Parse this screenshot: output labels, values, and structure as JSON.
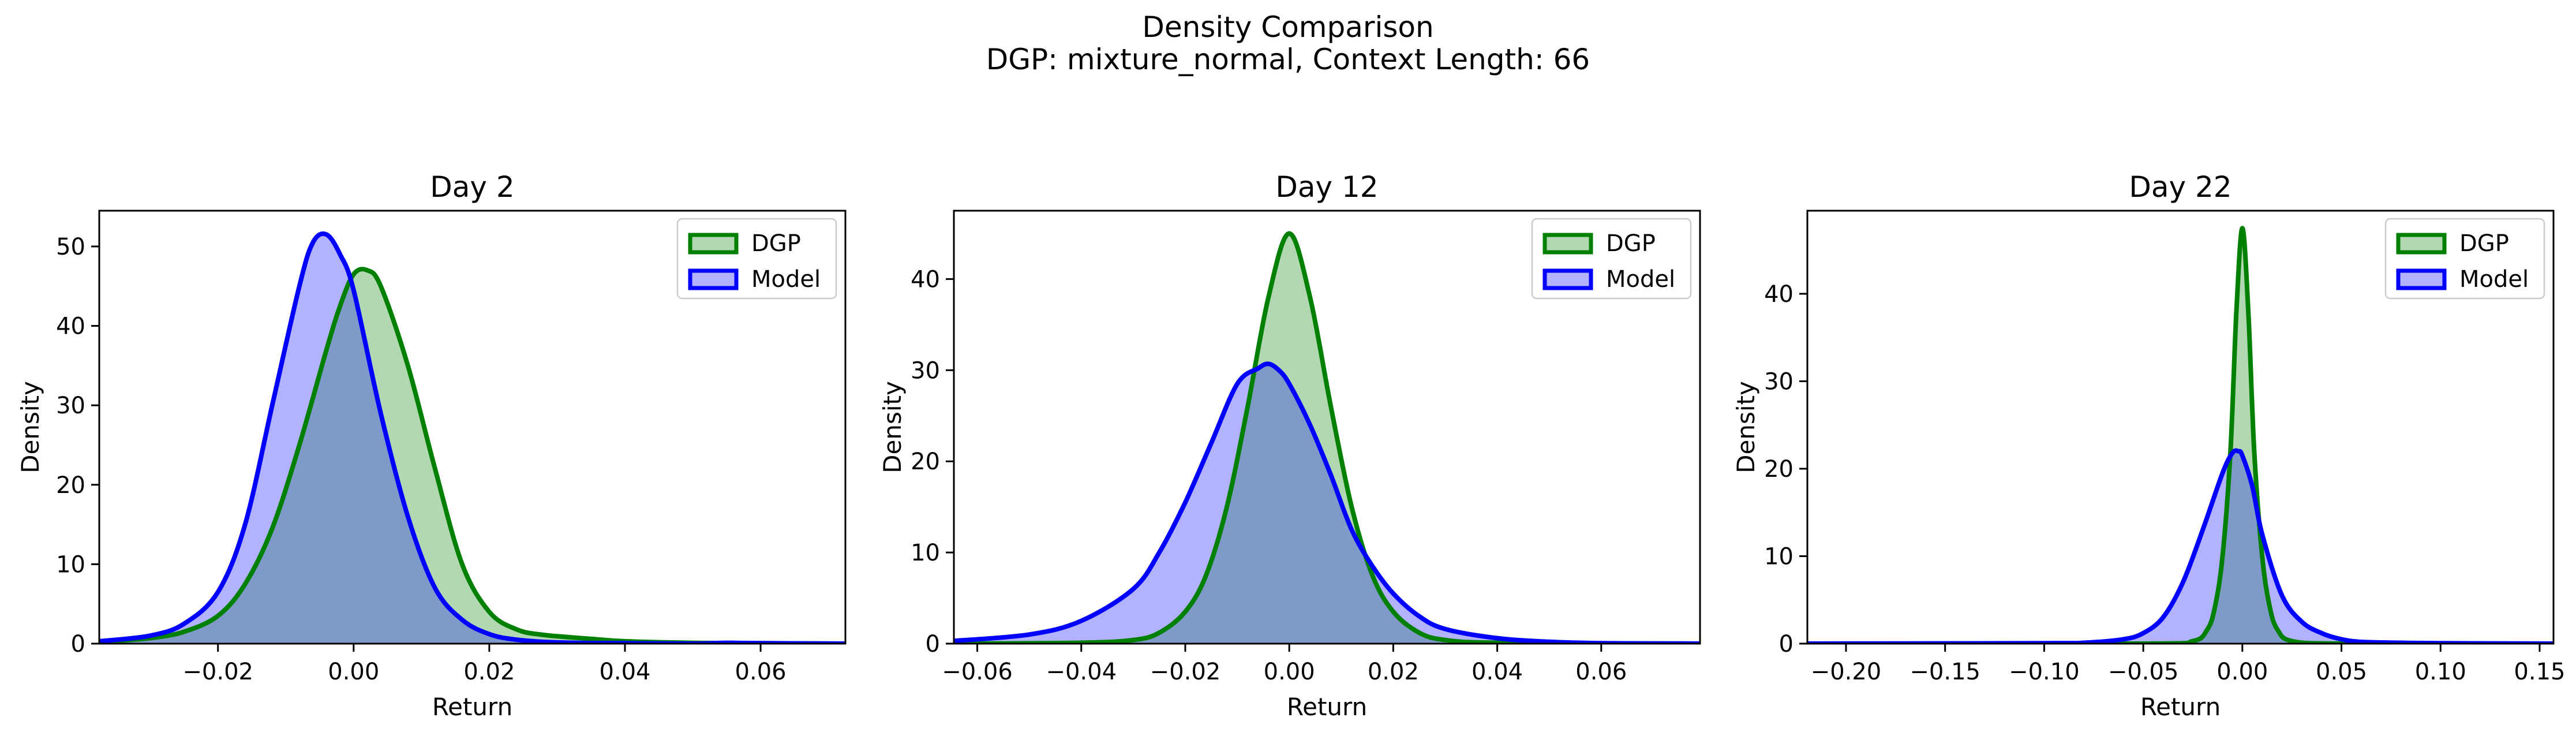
{
  "figure": {
    "title_line1": "Density Comparison",
    "title_line2": "DGP: mixture_normal, Context Length: 66"
  },
  "colors": {
    "dgp_line": "#008000",
    "dgp_fill": "#b2d8b2",
    "model_line": "#0000ff",
    "model_fill": "#b2b2ff",
    "overlap_fill": "#7f9ac8",
    "overlap_line": "#004c4c"
  },
  "chart_data": [
    {
      "type": "area",
      "title": "Day 2",
      "xlabel": "Return",
      "ylabel": "Density",
      "xlim": [
        -0.0375,
        0.0725
      ],
      "ylim": [
        0,
        54.5
      ],
      "xticks": [
        -0.02,
        0.0,
        0.02,
        0.04,
        0.06
      ],
      "xtick_labels": [
        "−0.02",
        "0.00",
        "0.02",
        "0.04",
        "0.06"
      ],
      "yticks": [
        0,
        10,
        20,
        30,
        40,
        50
      ],
      "ytick_labels": [
        "0",
        "10",
        "20",
        "30",
        "40",
        "50"
      ],
      "legend": "top-right",
      "series": [
        {
          "name": "DGP",
          "x": [
            -0.0375,
            -0.03,
            -0.025,
            -0.02,
            -0.016,
            -0.012,
            -0.008,
            -0.004,
            -0.002,
            0.0,
            0.002,
            0.004,
            0.008,
            0.012,
            0.016,
            0.02,
            0.024,
            0.028,
            0.035,
            0.04,
            0.05,
            0.06,
            0.0725
          ],
          "y": [
            0.2,
            0.7,
            1.5,
            3.5,
            7.5,
            14.5,
            25,
            37,
            42.5,
            46.5,
            47,
            45,
            35,
            22,
            10,
            4,
            1.8,
            1.1,
            0.6,
            0.3,
            0.1,
            0.05,
            0.0
          ]
        },
        {
          "name": "Model",
          "x": [
            -0.0375,
            -0.03,
            -0.025,
            -0.02,
            -0.016,
            -0.012,
            -0.008,
            -0.006,
            -0.004,
            -0.002,
            0.0,
            0.004,
            0.008,
            0.012,
            0.016,
            0.02,
            0.024,
            0.03,
            0.04,
            0.05,
            0.055,
            0.06,
            0.0725
          ],
          "y": [
            0.3,
            1.0,
            2.5,
            6.5,
            15,
            30,
            45,
            50.5,
            51.5,
            49,
            44.5,
            29,
            16,
            7,
            3,
            1.2,
            0.5,
            0.15,
            0.05,
            0.0,
            0.1,
            0.05,
            0.0
          ]
        }
      ]
    },
    {
      "type": "area",
      "title": "Day 12",
      "xlabel": "Return",
      "ylabel": "Density",
      "xlim": [
        -0.0645,
        0.079
      ],
      "ylim": [
        0,
        47.5
      ],
      "xticks": [
        -0.06,
        -0.04,
        -0.02,
        0.0,
        0.02,
        0.04,
        0.06
      ],
      "xtick_labels": [
        "−0.06",
        "−0.04",
        "−0.02",
        "0.00",
        "0.02",
        "0.04",
        "0.06"
      ],
      "yticks": [
        0,
        10,
        20,
        30,
        40
      ],
      "ytick_labels": [
        "0",
        "10",
        "20",
        "30",
        "40"
      ],
      "legend": "top-right",
      "series": [
        {
          "name": "DGP",
          "x": [
            -0.0645,
            -0.04,
            -0.03,
            -0.025,
            -0.02,
            -0.016,
            -0.012,
            -0.008,
            -0.004,
            0.0,
            0.004,
            0.008,
            0.012,
            0.016,
            0.02,
            0.025,
            0.03,
            0.04,
            0.079
          ],
          "y": [
            0.0,
            0.1,
            0.4,
            1.2,
            3.5,
            7.5,
            15,
            26,
            38,
            45,
            38,
            26,
            15,
            7.5,
            3.5,
            1.2,
            0.4,
            0.1,
            0.0
          ]
        },
        {
          "name": "Model",
          "x": [
            -0.0645,
            -0.05,
            -0.04,
            -0.03,
            -0.025,
            -0.02,
            -0.015,
            -0.01,
            -0.006,
            -0.004,
            -0.002,
            0.0,
            0.004,
            0.008,
            0.012,
            0.016,
            0.02,
            0.025,
            0.03,
            0.04,
            0.05,
            0.06,
            0.079
          ],
          "y": [
            0.3,
            1,
            2.5,
            6,
            10,
            15.5,
            22,
            28.5,
            30.2,
            30.7,
            30,
            28.5,
            24,
            18.5,
            12.5,
            8.5,
            5.5,
            3,
            1.6,
            0.6,
            0.2,
            0.05,
            0.0
          ]
        }
      ]
    },
    {
      "type": "area",
      "title": "Day 22",
      "xlabel": "Return",
      "ylabel": "Density",
      "xlim": [
        -0.2195,
        0.157
      ],
      "ylim": [
        0,
        49.5
      ],
      "xticks": [
        -0.2,
        -0.15,
        -0.1,
        -0.05,
        0.0,
        0.05,
        0.1,
        0.15
      ],
      "xtick_labels": [
        "−0.20",
        "−0.15",
        "−0.10",
        "−0.05",
        "0.00",
        "0.05",
        "0.10",
        "0.15"
      ],
      "yticks": [
        0,
        10,
        20,
        30,
        40
      ],
      "ytick_labels": [
        "0",
        "10",
        "20",
        "30",
        "40"
      ],
      "legend": "top-right",
      "series": [
        {
          "name": "DGP",
          "x": [
            -0.2195,
            -0.05,
            -0.025,
            -0.018,
            -0.014,
            -0.01,
            -0.006,
            -0.003,
            0.0,
            0.003,
            0.006,
            0.01,
            0.014,
            0.018,
            0.025,
            0.05,
            0.157
          ],
          "y": [
            0.0,
            0.0,
            0.3,
            1.5,
            4,
            10,
            22,
            38,
            47.5,
            38,
            22,
            10,
            4,
            1.5,
            0.3,
            0.0,
            0.0
          ]
        },
        {
          "name": "Model",
          "x": [
            -0.2195,
            -0.1,
            -0.08,
            -0.06,
            -0.05,
            -0.04,
            -0.03,
            -0.02,
            -0.01,
            -0.005,
            -0.002,
            0.0,
            0.005,
            0.01,
            0.02,
            0.03,
            0.04,
            0.05,
            0.06,
            0.08,
            0.1,
            0.157
          ],
          "y": [
            0.0,
            0.05,
            0.1,
            0.5,
            1.2,
            3,
            7,
            13,
            19.5,
            21.8,
            22,
            21.5,
            18,
            12.5,
            5.5,
            2.5,
            1.2,
            0.5,
            0.2,
            0.1,
            0.05,
            0.0
          ]
        }
      ]
    }
  ]
}
